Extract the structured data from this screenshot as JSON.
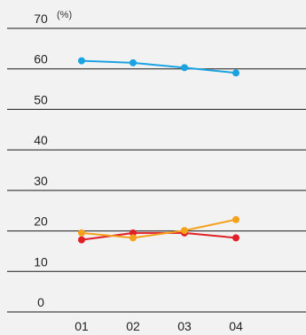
{
  "chart_data": {
    "type": "line",
    "ylabel": "(%)",
    "ylim": [
      0,
      70
    ],
    "y_ticks": [
      "0",
      "10",
      "20",
      "30",
      "40",
      "50",
      "60",
      "70"
    ],
    "categories": [
      "01",
      "02",
      "03",
      "04"
    ],
    "series": [
      {
        "color": "#1aa3e0",
        "values": [
          62.0,
          61.5,
          60.3,
          59.0
        ]
      },
      {
        "color": "#e02027",
        "values": [
          17.8,
          19.5,
          19.5,
          18.3
        ]
      },
      {
        "color": "#f5a11c",
        "values": [
          19.5,
          18.3,
          20.1,
          22.8
        ]
      }
    ],
    "grid": true
  }
}
